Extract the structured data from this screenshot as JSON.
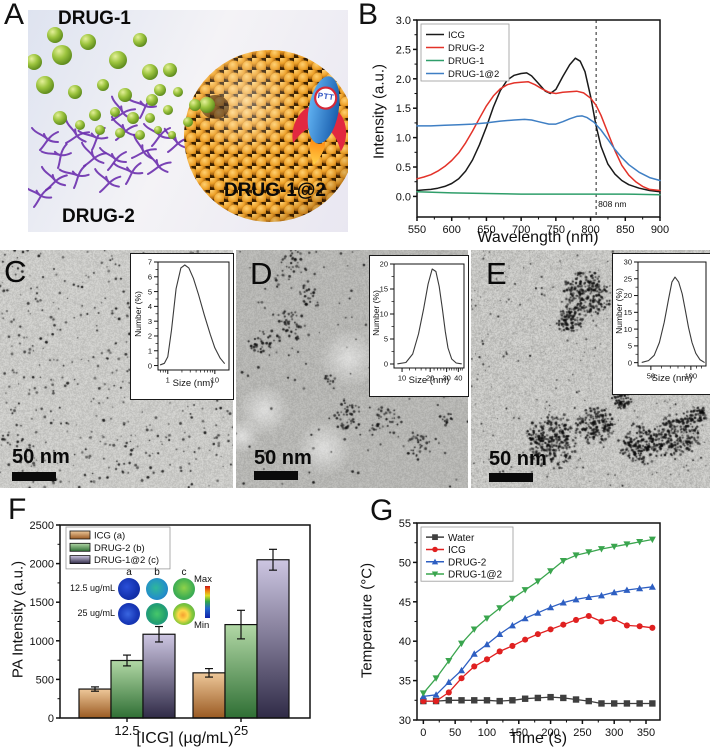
{
  "panels": {
    "A": {
      "letter": "A",
      "labels": {
        "drug1": "DRUG-1",
        "drug2": "DRUG-2",
        "combo": "DRUG-1@2",
        "rocket": "PTT"
      }
    },
    "B": {
      "letter": "B"
    },
    "C": {
      "letter": "C",
      "scalebar": "50 nm"
    },
    "D": {
      "letter": "D",
      "scalebar": "50 nm"
    },
    "E": {
      "letter": "E",
      "scalebar": "50 nm"
    },
    "F": {
      "letter": "F",
      "inset": {
        "rows": [
          "12.5 ug/mL",
          "25 ug/mL"
        ],
        "cols": [
          "a",
          "b",
          "c"
        ],
        "max": "Max",
        "min": "Min"
      }
    },
    "G": {
      "letter": "G"
    }
  },
  "chart_data": {
    "absorbance": {
      "type": "line",
      "xlabel": "Wavelength (nm)",
      "ylabel": "Intensity (a.u.)",
      "xlim": [
        550,
        900
      ],
      "ylim": [
        -0.35,
        3.0
      ],
      "xticks": [
        550,
        600,
        650,
        700,
        750,
        800,
        850,
        900
      ],
      "yticks": [
        0,
        0.5,
        1,
        1.5,
        2,
        2.5,
        3
      ],
      "ytick_labels": [
        "0.0",
        "0.5",
        "1.0",
        "1.5",
        "2.0",
        "2.5",
        "3.0"
      ],
      "legend_position": "top-left",
      "annotation": {
        "x": 808,
        "label": "808 nm"
      },
      "series": [
        {
          "name": "ICG",
          "color": "#1a1a1a",
          "x": [
            550,
            560,
            570,
            580,
            590,
            600,
            610,
            620,
            630,
            640,
            650,
            660,
            670,
            680,
            690,
            700,
            708,
            715,
            725,
            735,
            742,
            750,
            760,
            770,
            778,
            785,
            792,
            800,
            808,
            815,
            825,
            835,
            845,
            855,
            870,
            885,
            900
          ],
          "y": [
            0.1,
            0.11,
            0.12,
            0.14,
            0.17,
            0.22,
            0.3,
            0.43,
            0.62,
            0.88,
            1.18,
            1.52,
            1.8,
            1.98,
            2.06,
            2.09,
            2.1,
            2.05,
            1.92,
            1.79,
            1.75,
            1.82,
            2.04,
            2.24,
            2.35,
            2.3,
            2.12,
            1.7,
            1.2,
            0.85,
            0.55,
            0.38,
            0.27,
            0.2,
            0.14,
            0.1,
            0.08
          ]
        },
        {
          "name": "DRUG-2",
          "color": "#e33229",
          "x": [
            550,
            560,
            570,
            580,
            590,
            600,
            610,
            620,
            630,
            640,
            650,
            660,
            670,
            680,
            690,
            700,
            710,
            720,
            730,
            740,
            750,
            760,
            770,
            780,
            790,
            800,
            808,
            815,
            825,
            835,
            845,
            855,
            865,
            875,
            885,
            900
          ],
          "y": [
            0.3,
            0.33,
            0.37,
            0.43,
            0.51,
            0.61,
            0.74,
            0.91,
            1.11,
            1.33,
            1.54,
            1.71,
            1.83,
            1.9,
            1.93,
            1.94,
            1.95,
            1.9,
            1.83,
            1.77,
            1.75,
            1.77,
            1.78,
            1.79,
            1.76,
            1.67,
            1.55,
            1.38,
            1.08,
            0.78,
            0.53,
            0.36,
            0.25,
            0.17,
            0.12,
            0.1
          ]
        },
        {
          "name": "DRUG-1",
          "color": "#2f9e6a",
          "x": [
            550,
            600,
            650,
            700,
            750,
            800,
            850,
            900
          ],
          "y": [
            0.08,
            0.06,
            0.05,
            0.04,
            0.04,
            0.04,
            0.04,
            0.03
          ]
        },
        {
          "name": "DRUG-1@2",
          "color": "#3f7fc4",
          "x": [
            550,
            570,
            590,
            610,
            630,
            650,
            670,
            690,
            705,
            715,
            725,
            740,
            750,
            760,
            770,
            780,
            788,
            795,
            805,
            815,
            825,
            835,
            845,
            855,
            870,
            885,
            900
          ],
          "y": [
            1.2,
            1.2,
            1.21,
            1.22,
            1.23,
            1.25,
            1.28,
            1.3,
            1.31,
            1.3,
            1.27,
            1.23,
            1.23,
            1.27,
            1.32,
            1.36,
            1.37,
            1.34,
            1.26,
            1.13,
            0.97,
            0.8,
            0.66,
            0.54,
            0.41,
            0.32,
            0.27
          ]
        }
      ]
    },
    "size_c": {
      "type": "line",
      "xlabel": "Size (nm)",
      "ylabel": "Number (%)",
      "xlog": true,
      "xlim": [
        0.62,
        20
      ],
      "ylim": [
        -0.3,
        7
      ],
      "xticks": [
        1,
        10
      ],
      "yticks": [
        0,
        1,
        2,
        3,
        4,
        5,
        6,
        7
      ],
      "series": [
        {
          "name": "size-distribution",
          "color": "#3a3a3a",
          "x": [
            0.7,
            0.85,
            1.0,
            1.2,
            1.5,
            1.9,
            2.3,
            2.8,
            3.5,
            4.5,
            6,
            8,
            10,
            13,
            16
          ],
          "y": [
            0.05,
            0.15,
            0.6,
            2.4,
            5.2,
            6.6,
            6.8,
            6.6,
            5.9,
            4.8,
            3.4,
            2.1,
            1.2,
            0.5,
            0.15
          ]
        }
      ]
    },
    "size_d": {
      "type": "line",
      "xlabel": "Size (nm)",
      "ylabel": "Number (%)",
      "xlog": true,
      "xlim": [
        8.2,
        46
      ],
      "ylim": [
        -0.8,
        20
      ],
      "xticks": [
        10,
        20,
        30,
        40
      ],
      "yticks": [
        0,
        5,
        10,
        15,
        20
      ],
      "series": [
        {
          "name": "size-distribution",
          "color": "#3a3a3a",
          "x": [
            9,
            11,
            13,
            15,
            17,
            19,
            21,
            23,
            25,
            27,
            29,
            31,
            34,
            38,
            43
          ],
          "y": [
            0.05,
            0.3,
            2,
            6,
            11,
            16,
            19,
            18.5,
            15.5,
            11,
            6.5,
            3.2,
            1.0,
            0.2,
            0.05
          ]
        }
      ]
    },
    "size_e": {
      "type": "line",
      "xlabel": "Size (nm)",
      "ylabel": "Number (%)",
      "xlog": true,
      "xlim": [
        40,
        130
      ],
      "ylim": [
        -1,
        30
      ],
      "xticks": [
        50,
        100
      ],
      "yticks": [
        0,
        5,
        10,
        15,
        20,
        25,
        30
      ],
      "series": [
        {
          "name": "size-distribution",
          "color": "#3a3a3a",
          "x": [
            43,
            48,
            53,
            58,
            63,
            68,
            72,
            76,
            81,
            86,
            91,
            96,
            102,
            109,
            117,
            126
          ],
          "y": [
            0.1,
            0.6,
            2.2,
            6,
            12,
            19,
            24,
            25.5,
            24,
            20.5,
            15.5,
            10.5,
            6,
            2.8,
            0.9,
            0.1
          ]
        }
      ]
    },
    "pa": {
      "type": "bar",
      "xlabel": "[ICG] (µg/mL)",
      "ylabel": "PA Intensity (a.u.)",
      "categories": [
        "12.5",
        "25"
      ],
      "ylim": [
        0,
        2500
      ],
      "yticks": [
        0,
        500,
        1000,
        1500,
        2000,
        2500
      ],
      "legend_position": "top-left",
      "series": [
        {
          "name": "ICG (a)",
          "values": [
            375,
            585
          ],
          "errors": [
            28,
            55
          ],
          "color_top": "#eec89a",
          "color_bottom": "#9a5a22"
        },
        {
          "name": "DRUG-2 (b)",
          "values": [
            745,
            1210
          ],
          "errors": [
            70,
            185
          ],
          "color_top": "#b2d8a6",
          "color_bottom": "#2f6f34"
        },
        {
          "name": "DRUG-1@2 (c)",
          "values": [
            1085,
            2050
          ],
          "errors": [
            100,
            135
          ],
          "color_top": "#cdc6e2",
          "color_bottom": "#302b47"
        }
      ]
    },
    "heating": {
      "type": "line",
      "xlabel": "Time (s)",
      "ylabel": "Temperature (°C)",
      "xlim": [
        -10,
        372
      ],
      "ylim": [
        30,
        55
      ],
      "xticks": [
        0,
        50,
        100,
        150,
        200,
        250,
        300,
        350
      ],
      "yticks": [
        30,
        35,
        40,
        45,
        50,
        55
      ],
      "legend_position": "top-left",
      "x": [
        0,
        20,
        40,
        60,
        80,
        100,
        120,
        140,
        160,
        180,
        200,
        220,
        240,
        260,
        280,
        300,
        320,
        340,
        360
      ],
      "series": [
        {
          "name": "Water",
          "color": "#3f3f3f",
          "marker": "square",
          "y": [
            32.4,
            32.4,
            32.5,
            32.5,
            32.5,
            32.5,
            32.4,
            32.5,
            32.7,
            32.8,
            32.9,
            32.8,
            32.6,
            32.4,
            32.1,
            32.1,
            32.1,
            32.1,
            32.1
          ]
        },
        {
          "name": "ICG",
          "color": "#e02020",
          "marker": "circle",
          "y": [
            32.4,
            32.4,
            33.5,
            35.3,
            36.8,
            37.7,
            38.7,
            39.4,
            40.2,
            40.9,
            41.5,
            42.1,
            42.7,
            43.2,
            42.5,
            42.8,
            42.0,
            41.9,
            41.7
          ]
        },
        {
          "name": "DRUG-2",
          "color": "#2e5fc2",
          "marker": "triangle-up",
          "y": [
            33.0,
            33.2,
            34.8,
            36.3,
            38.4,
            39.6,
            40.9,
            42.0,
            42.9,
            43.6,
            44.3,
            44.9,
            45.3,
            45.6,
            45.8,
            46.2,
            46.5,
            46.7,
            46.9
          ]
        },
        {
          "name": "DRUG-1@2",
          "color": "#3aa54e",
          "marker": "triangle-down",
          "y": [
            33.4,
            35.3,
            37.5,
            39.7,
            41.5,
            42.9,
            44.2,
            45.4,
            46.5,
            47.6,
            48.9,
            50.2,
            50.9,
            51.3,
            51.7,
            52.0,
            52.3,
            52.6,
            52.9
          ]
        }
      ]
    }
  }
}
